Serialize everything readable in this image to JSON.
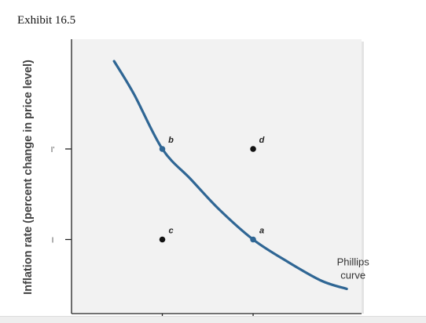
{
  "page_title": "Exhibit 16.5",
  "colors": {
    "curve": "#2f6694",
    "point": "#111111",
    "panel": "#f2f2f2",
    "axis": "#222222"
  },
  "chart_data": {
    "type": "line",
    "title": "Exhibit 16.5",
    "xlabel": "",
    "ylabel": "Inflation rate (percent change in price level)",
    "xlim": [
      0,
      10
    ],
    "ylim": [
      0,
      10
    ],
    "grid": false,
    "y_ticks": [
      {
        "label": "I'",
        "value": 6
      },
      {
        "label": "I",
        "value": 2.7
      }
    ],
    "x_ticks": [
      {
        "label": "",
        "value": 3.2
      },
      {
        "label": "",
        "value": 6.4
      }
    ],
    "series": [
      {
        "name": "",
        "label": "Phillips curve",
        "label_lines": [
          "Phillips",
          "curve"
        ],
        "x": [
          1.5,
          2.2,
          3.2,
          4.2,
          5.2,
          6.4,
          7.6,
          8.8,
          9.7
        ],
        "y": [
          9.2,
          8.0,
          6.0,
          4.9,
          3.8,
          2.7,
          1.9,
          1.2,
          0.9
        ]
      }
    ],
    "points": [
      {
        "label": "b",
        "x": 3.2,
        "y": 6.0,
        "on_curve": true
      },
      {
        "label": "a",
        "x": 6.4,
        "y": 2.7,
        "on_curve": true
      },
      {
        "label": "c",
        "x": 3.2,
        "y": 2.7,
        "on_curve": false
      },
      {
        "label": "d",
        "x": 6.4,
        "y": 6.0,
        "on_curve": false
      }
    ]
  }
}
